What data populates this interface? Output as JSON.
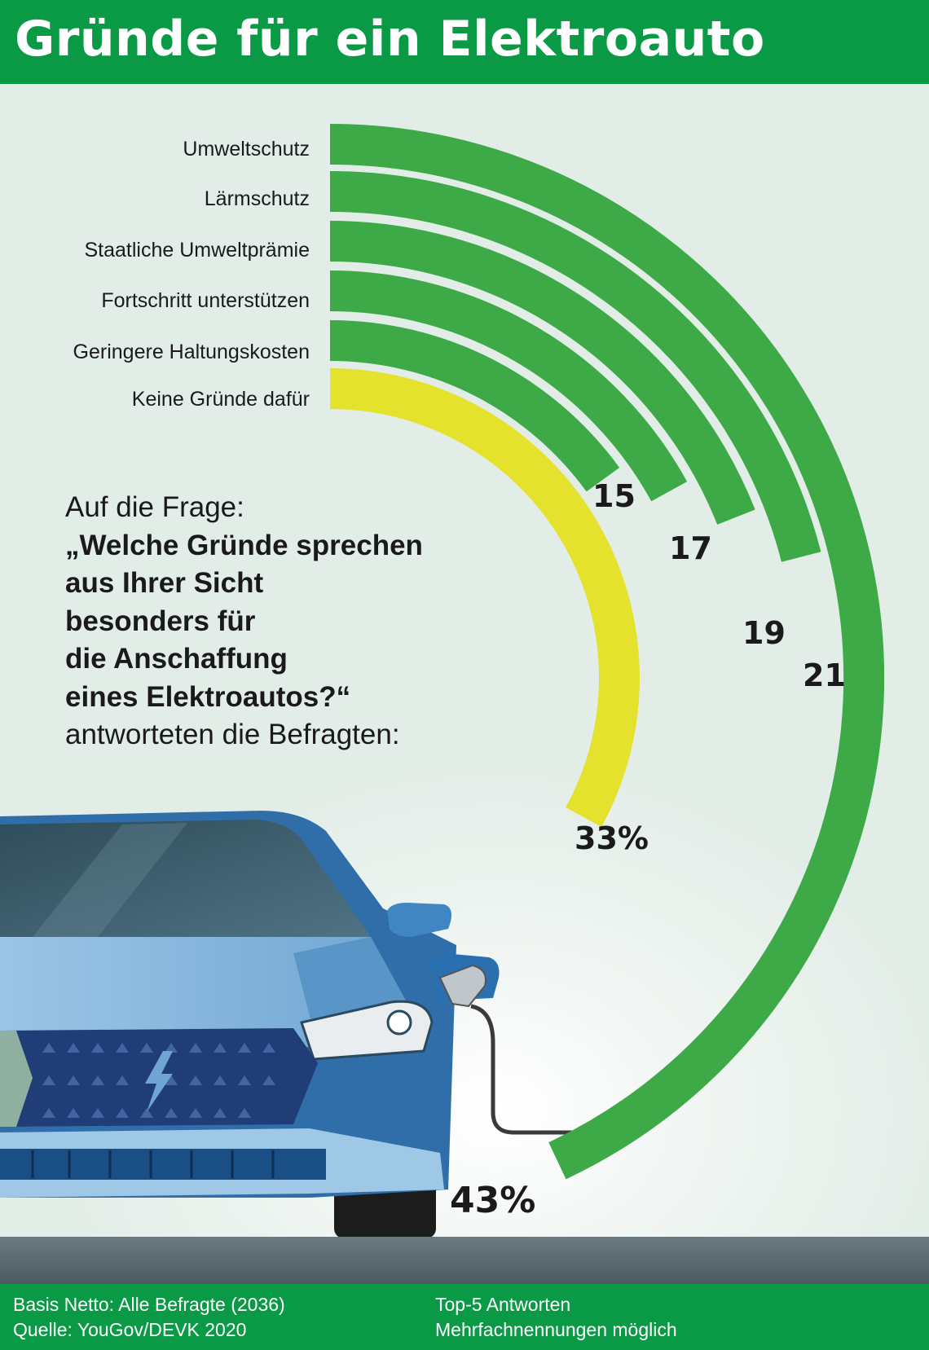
{
  "header": {
    "title": "Gründe für ein Elektroauto"
  },
  "chart_data": {
    "type": "radial-bar",
    "unit": "%",
    "categories": [
      "Umweltschutz",
      "Lärmschutz",
      "Staatliche Umweltprämie",
      "Fortschritt unterstützen",
      "Geringere Haltungskosten",
      "Keine Gründe dafür"
    ],
    "values": [
      43,
      21,
      19,
      17,
      15,
      33
    ],
    "value_labels": [
      "43%",
      "21",
      "19",
      "17",
      "15",
      "33%"
    ],
    "colors": [
      "#3daa47",
      "#3daa47",
      "#3daa47",
      "#3daa47",
      "#3daa47",
      "#e5e22e"
    ]
  },
  "question": {
    "intro": "Auf die Frage:",
    "text": "„Welche Gründe sprechen\naus Ihrer Sicht\nbesonders für\ndie Anschaffung\neines Elektroautos?“",
    "outro": "antworteten die Befragten:"
  },
  "footer": {
    "basis": "Basis Netto: Alle Befragte (2036)",
    "source": "Quelle: YouGov/DEVK 2020",
    "note1": "Top-5 Antworten",
    "note2": "Mehrfachnennungen möglich"
  },
  "illustration": {
    "car_icon": "electric-car-charging-icon",
    "bolt_icon": "lightning-bolt-icon"
  }
}
